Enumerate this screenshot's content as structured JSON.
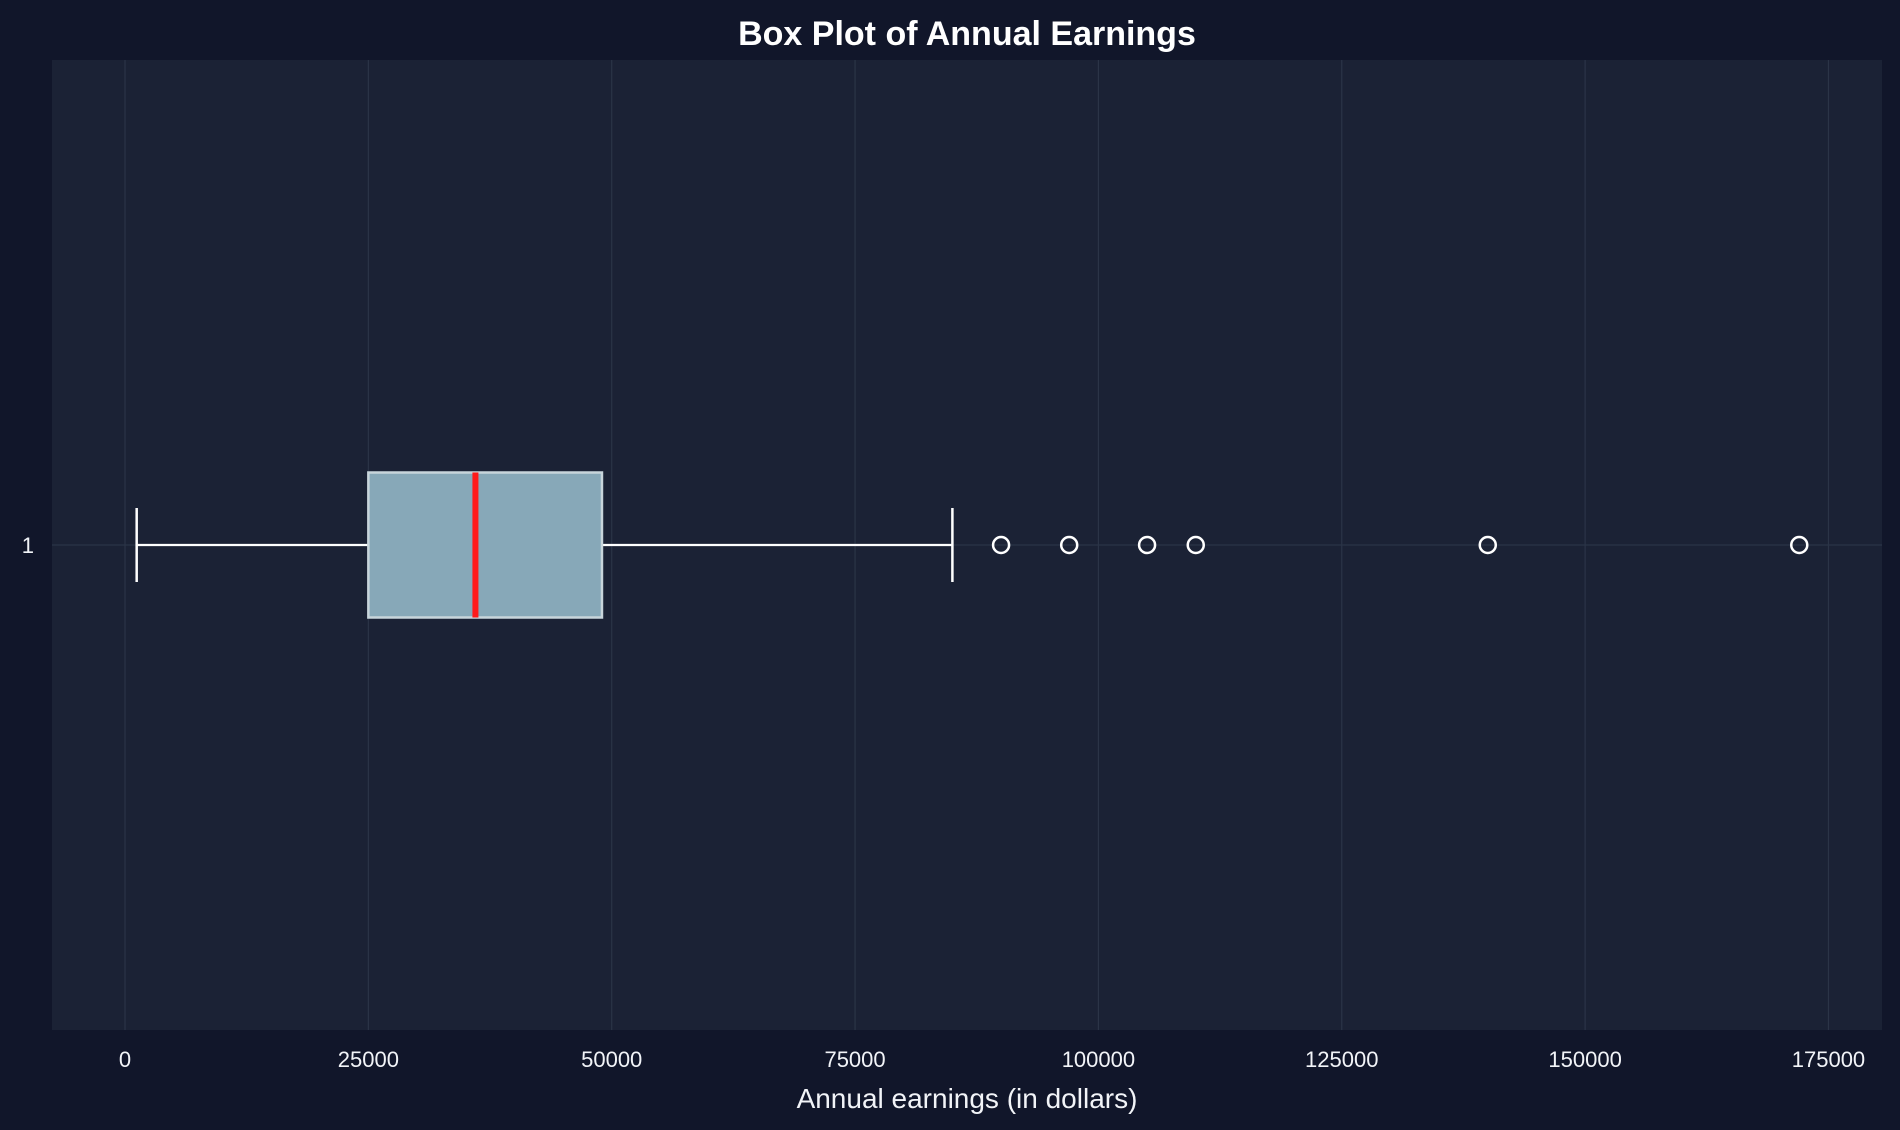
{
  "chart_data": {
    "type": "box",
    "title": "Box Plot of Annual Earnings",
    "xlabel": "Annual earnings (in dollars)",
    "ylabel": "",
    "orientation": "horizontal",
    "categories": [
      "1"
    ],
    "xlim": [
      -7500,
      180500
    ],
    "x_ticks": [
      0,
      25000,
      50000,
      75000,
      100000,
      125000,
      150000,
      175000
    ],
    "x_tick_labels": [
      "0",
      "25000",
      "50000",
      "75000",
      "100000",
      "125000",
      "150000",
      "175000"
    ],
    "grid": true,
    "series": [
      {
        "whisker_low": 1200,
        "q1": 25000,
        "median": 36000,
        "q3": 49000,
        "whisker_high": 85000,
        "outliers": [
          90000,
          97000,
          105000,
          110000,
          140000,
          172000
        ]
      }
    ],
    "colors": {
      "background": "#11162a",
      "plot_area": "#1b2235",
      "grid": "#2b3447",
      "box_fill": "#87a8b8",
      "box_edge": "#c8d5db",
      "median": "#ff1a1a",
      "whisker": "#ffffff",
      "outlier_edge": "#ffffff"
    }
  }
}
